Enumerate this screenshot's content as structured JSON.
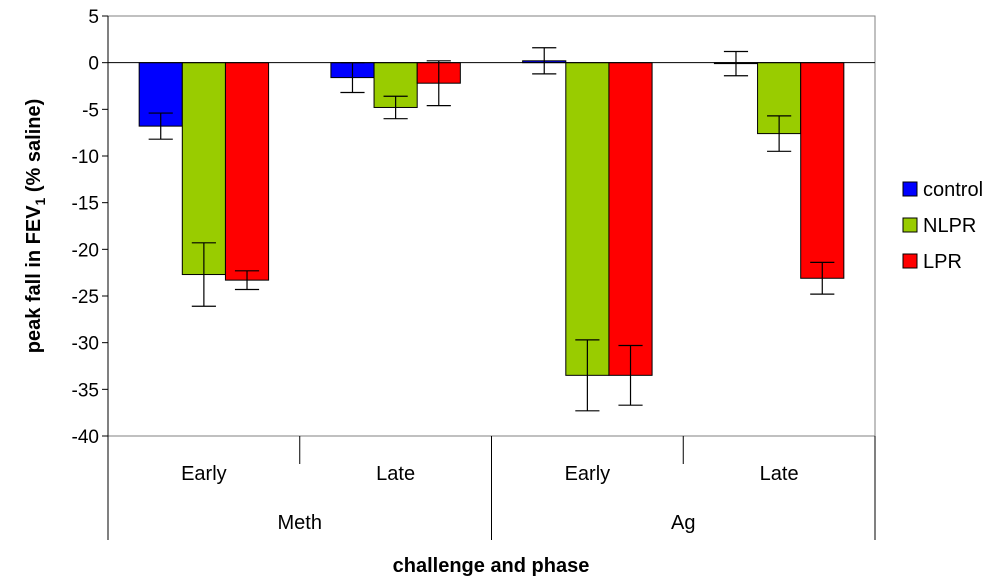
{
  "chart_data": {
    "type": "bar",
    "xlabel": "challenge and phase",
    "ylabel_main": "peak fall in FEV",
    "ylabel_subscript": "1",
    "ylabel_suffix": " (% saline)",
    "ylim": [
      -40,
      5
    ],
    "yticks": [
      5,
      0,
      -5,
      -10,
      -15,
      -20,
      -25,
      -30,
      -35,
      -40
    ],
    "groups": [
      {
        "label": "Meth",
        "phases": [
          "Early",
          "Late"
        ]
      },
      {
        "label": "Ag",
        "phases": [
          "Early",
          "Late"
        ]
      }
    ],
    "categories": [
      "Early",
      "Late",
      "Early",
      "Late"
    ],
    "series": [
      {
        "name": "control",
        "color": "#0000ff",
        "values": [
          -6.8,
          -1.6,
          0.2,
          -0.1
        ],
        "errors": [
          1.4,
          1.6,
          1.4,
          1.3
        ]
      },
      {
        "name": "NLPR",
        "color": "#99cc00",
        "values": [
          -22.7,
          -4.8,
          -33.5,
          -7.6
        ],
        "errors": [
          3.4,
          1.2,
          3.8,
          1.9
        ]
      },
      {
        "name": "LPR",
        "color": "#ff0000",
        "values": [
          -23.3,
          -2.2,
          -33.5,
          -23.1
        ],
        "errors": [
          1.0,
          2.4,
          3.2,
          1.7
        ]
      }
    ],
    "legend_position": "right",
    "grid": false
  }
}
